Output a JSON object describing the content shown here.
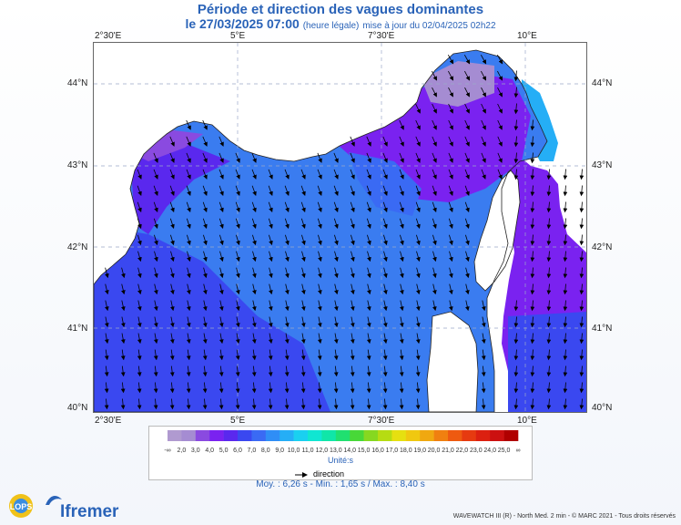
{
  "title": "Période et direction des vagues dominantes",
  "subtitle": {
    "date": "le 27/03/2025 07:00",
    "note": "(heure légale)",
    "update": "mise à jour du 02/04/2025 02h22"
  },
  "axes": {
    "x_ticks": [
      "2°30'E",
      "5°E",
      "7°30'E",
      "10°E"
    ],
    "y_ticks": [
      "44°N",
      "43°N",
      "42°N",
      "41°N",
      "40°N"
    ]
  },
  "legend": {
    "labels": [
      "-∞",
      "2,0",
      "3,0",
      "4,0",
      "5,0",
      "6,0",
      "7,0",
      "8,0",
      "9,0",
      "10,0",
      "11,0",
      "12,0",
      "13,0",
      "14,0",
      "15,0",
      "16,0",
      "17,0",
      "18,0",
      "19,0",
      "20,0",
      "21,0",
      "22,0",
      "23,0",
      "24,0",
      "25,0",
      "∞"
    ],
    "colors": [
      "#b09ad0",
      "#a58cd2",
      "#8a4ae0",
      "#7a22f0",
      "#5a28ee",
      "#3a48f0",
      "#3a6af4",
      "#2f8ef6",
      "#25aef6",
      "#1ad0f0",
      "#10e6d2",
      "#10e6a8",
      "#20e070",
      "#48d838",
      "#86d820",
      "#b6dc12",
      "#e6e010",
      "#f0c810",
      "#f0a810",
      "#f08010",
      "#ee5a10",
      "#e63a10",
      "#dc2010",
      "#cc1010",
      "#b00000"
    ],
    "unit": "Unité:s",
    "direction_label": "direction"
  },
  "stats": "Moy. : 6,26 s   -   Min. : 1,65 s / Max. : 8,40 s",
  "credit": "WAVEWATCH III (R) - North Med. 2 min - © MARC 2021 - Tous droits réservés",
  "logos": {
    "lops": "LOPS",
    "ifremer": "Ifremer"
  },
  "map": {
    "sea_color": "#3a7cf0",
    "land_color": "#ffffff"
  }
}
